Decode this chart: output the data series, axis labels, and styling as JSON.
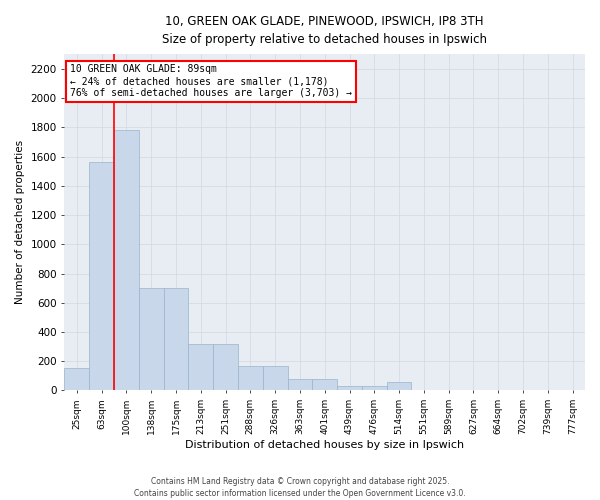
{
  "title_line1": "10, GREEN OAK GLADE, PINEWOOD, IPSWICH, IP8 3TH",
  "title_line2": "Size of property relative to detached houses in Ipswich",
  "xlabel": "Distribution of detached houses by size in Ipswich",
  "ylabel": "Number of detached properties",
  "categories": [
    "25sqm",
    "63sqm",
    "100sqm",
    "138sqm",
    "175sqm",
    "213sqm",
    "251sqm",
    "288sqm",
    "326sqm",
    "363sqm",
    "401sqm",
    "439sqm",
    "476sqm",
    "514sqm",
    "551sqm",
    "589sqm",
    "627sqm",
    "664sqm",
    "702sqm",
    "739sqm",
    "777sqm"
  ],
  "bar_values": [
    155,
    1560,
    1780,
    700,
    700,
    320,
    320,
    165,
    165,
    75,
    75,
    30,
    30,
    60,
    5,
    5,
    2,
    2,
    2,
    2,
    0
  ],
  "bar_color": "#c8d8ea",
  "bar_edge_color": "#9ab4cc",
  "vline_color": "red",
  "vline_x": 1.5,
  "annotation_text": "10 GREEN OAK GLADE: 89sqm\n← 24% of detached houses are smaller (1,178)\n76% of semi-detached houses are larger (3,703) →",
  "annotation_box_color": "white",
  "annotation_box_edge": "red",
  "ylim": [
    0,
    2300
  ],
  "yticks": [
    0,
    200,
    400,
    600,
    800,
    1000,
    1200,
    1400,
    1600,
    1800,
    2000,
    2200
  ],
  "grid_color": "#d0d8e0",
  "bg_color": "#e8edf4",
  "fig_bg": "white",
  "footer_line1": "Contains HM Land Registry data © Crown copyright and database right 2025.",
  "footer_line2": "Contains public sector information licensed under the Open Government Licence v3.0."
}
